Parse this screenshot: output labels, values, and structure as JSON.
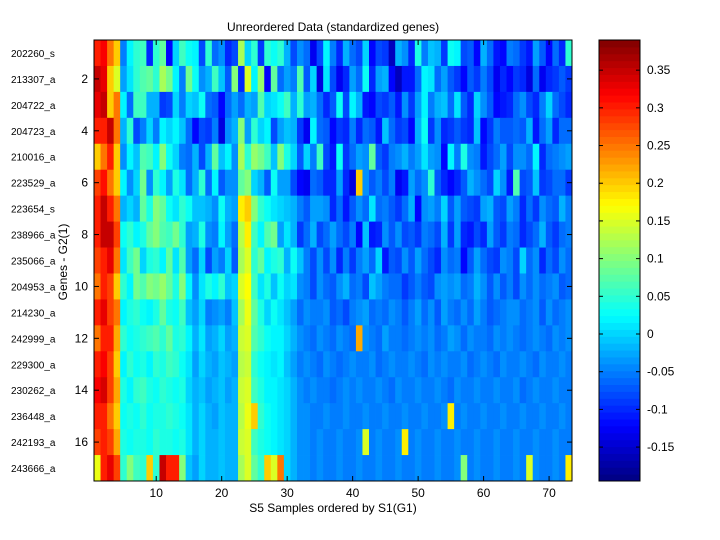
{
  "chart_data": {
    "type": "heatmap",
    "title": "Unreordered Data (standardized genes)",
    "xlabel": "S5 Samples ordered by S1(G1)",
    "ylabel": "Genes - G2(1)",
    "n_rows": 17,
    "n_cols": 73,
    "xlim": [
      0.5,
      73.5
    ],
    "ylim": [
      0.5,
      17.5
    ],
    "x_ticks": [
      10,
      20,
      30,
      40,
      50,
      60,
      70
    ],
    "y_ticks": [
      2,
      4,
      6,
      8,
      10,
      12,
      14,
      16
    ],
    "row_labels": [
      "202260_s",
      "213307_a",
      "204722_a",
      "204723_a",
      "210016_a",
      "223529_a",
      "223654_s",
      "238966_a",
      "235066_a",
      "204953_a",
      "214230_a",
      "242999_a",
      "229300_a",
      "230262_a",
      "236448_a",
      "242193_a",
      "243666_a"
    ],
    "colorbar": {
      "colormap": "jet",
      "clim": [
        -0.195,
        0.39
      ],
      "ticks": [
        -0.15,
        -0.1,
        -0.05,
        0,
        0.05,
        0.1,
        0.15,
        0.2,
        0.25,
        0.3,
        0.35
      ]
    },
    "values_note": "cell values estimated from color: first ~4 columns high (~0.25-0.35), column ~23 elevated (~0.15), remainder mostly -0.15 to 0.05",
    "values": [
      [
        0.3,
        0.32,
        0.25,
        0.2,
        -0.05,
        0.02,
        0.05,
        0.06,
        -0.1,
        0.05,
        0.08,
        -0.12,
        0.0,
        0.06,
        0.03,
        0.02,
        -0.08,
        0.05,
        -0.06,
        -0.04,
        -0.1,
        -0.08,
        0.12,
        0.0,
        0.05,
        -0.09,
        0.05,
        0.03,
        0.05,
        -0.02,
        -0.08,
        -0.04,
        -0.06,
        -0.13,
        -0.08,
        0.02,
        -0.05,
        -0.1,
        -0.02,
        -0.06,
        -0.08,
        0.0,
        -0.12,
        -0.08,
        -0.09,
        -0.16,
        -0.02,
        -0.04,
        -0.1,
        0.04,
        -0.05,
        -0.01,
        -0.02,
        -0.09,
        0.03,
        0.02,
        -0.08,
        -0.07,
        -0.12,
        -0.02,
        -0.06,
        -0.11,
        -0.12,
        -0.05,
        -0.06,
        -0.09,
        -0.11,
        -0.03,
        -0.07,
        -0.12,
        -0.06,
        -0.1,
        0.05
      ],
      [
        0.35,
        0.33,
        0.2,
        0.15,
        -0.03,
        0.01,
        0.05,
        0.07,
        0.08,
        0.05,
        0.12,
        0.09,
        0.02,
        -0.05,
        0.09,
        0.03,
        -0.04,
        -0.02,
        0.06,
        -0.01,
        -0.07,
        0.1,
        -0.1,
        0.15,
        0.02,
        0.11,
        -0.12,
        0.08,
        -0.06,
        -0.03,
        -0.05,
        0.07,
        -0.07,
        0.0,
        -0.14,
        0.01,
        -0.08,
        -0.13,
        -0.1,
        -0.03,
        -0.06,
        0.03,
        -0.1,
        -0.03,
        -0.02,
        -0.12,
        -0.16,
        -0.11,
        -0.11,
        -0.06,
        0.02,
        0.01,
        -0.06,
        -0.03,
        -0.07,
        -0.09,
        -0.12,
        -0.07,
        -0.09,
        -0.05,
        -0.08,
        -0.13,
        -0.1,
        -0.12,
        -0.09,
        -0.1,
        -0.14,
        -0.06,
        -0.13,
        -0.1,
        -0.09,
        -0.07,
        -0.09
      ],
      [
        0.33,
        0.35,
        0.2,
        0.25,
        0.02,
        -0.06,
        0.06,
        0.06,
        -0.02,
        -0.02,
        -0.09,
        -0.08,
        0.0,
        -0.05,
        0.0,
        -0.01,
        0.03,
        -0.06,
        -0.07,
        -0.12,
        -0.06,
        -0.03,
        -0.06,
        -0.02,
        -0.03,
        0.07,
        0.0,
        0.01,
        0.03,
        0.06,
        -0.02,
        0.05,
        -0.03,
        -0.02,
        -0.06,
        -0.1,
        -0.07,
        0.03,
        -0.08,
        0.02,
        -0.02,
        -0.11,
        -0.12,
        -0.08,
        -0.09,
        -0.07,
        -0.11,
        -0.04,
        -0.09,
        -0.03,
        0.02,
        -0.05,
        -0.02,
        -0.01,
        -0.06,
        0.01,
        -0.07,
        -0.1,
        0.0,
        -0.04,
        -0.07,
        -0.12,
        -0.11,
        -0.1,
        -0.06,
        -0.04,
        -0.08,
        -0.1,
        -0.05,
        0.0,
        -0.06,
        -0.08,
        -0.1
      ],
      [
        0.3,
        0.3,
        0.35,
        0.25,
        -0.02,
        0.05,
        -0.08,
        -0.05,
        0.0,
        -0.05,
        0.02,
        0.0,
        0.02,
        -0.01,
        -0.06,
        -0.12,
        -0.08,
        -0.09,
        -0.05,
        -0.14,
        -0.04,
        -0.02,
        0.1,
        -0.03,
        0.05,
        0.0,
        0.02,
        -0.08,
        -0.03,
        -0.01,
        -0.02,
        -0.09,
        -0.13,
        0.02,
        -0.06,
        -0.07,
        -0.12,
        -0.09,
        -0.1,
        -0.05,
        -0.1,
        -0.06,
        -0.07,
        -0.11,
        -0.01,
        -0.06,
        -0.09,
        -0.08,
        -0.12,
        -0.02,
        0.03,
        -0.09,
        -0.04,
        -0.1,
        -0.09,
        -0.07,
        -0.09,
        -0.1,
        -0.01,
        -0.12,
        -0.09,
        -0.05,
        -0.07,
        -0.07,
        -0.06,
        -0.07,
        -0.02,
        -0.11,
        -0.06,
        -0.03,
        -0.1,
        -0.06,
        -0.06
      ],
      [
        0.2,
        0.25,
        0.3,
        0.2,
        -0.04,
        0.02,
        -0.01,
        0.07,
        0.06,
        0.02,
        0.1,
        0.03,
        0.0,
        -0.05,
        -0.06,
        -0.02,
        -0.08,
        -0.02,
        0.08,
        -0.01,
        0.02,
        -0.04,
        0.12,
        0.05,
        0.11,
        0.09,
        0.06,
        -0.01,
        0.1,
        0.04,
        0.0,
        -0.07,
        0.0,
        -0.05,
        0.06,
        -0.08,
        -0.11,
        0.03,
        -0.09,
        -0.06,
        -0.03,
        -0.04,
        0.08,
        -0.07,
        -0.09,
        -0.05,
        -0.04,
        -0.02,
        -0.05,
        -0.03,
        0.01,
        -0.03,
        -0.04,
        -0.12,
        0.02,
        -0.05,
        0.04,
        -0.04,
        -0.05,
        -0.11,
        -0.08,
        -0.06,
        -0.03,
        -0.08,
        -0.04,
        -0.04,
        -0.06,
        0.02,
        -0.1,
        -0.06,
        -0.05,
        -0.04,
        -0.03
      ],
      [
        0.28,
        0.31,
        0.25,
        0.2,
        0.02,
        -0.04,
        0.0,
        0.09,
        -0.04,
        0.05,
        0.02,
        -0.03,
        0.04,
        0.01,
        -0.06,
        -0.02,
        0.05,
        -0.06,
        0.02,
        -0.07,
        -0.04,
        -0.04,
        0.08,
        0.1,
        0.0,
        -0.02,
        -0.07,
        0.03,
        -0.03,
        -0.03,
        -0.08,
        -0.12,
        -0.13,
        -0.06,
        -0.07,
        -0.1,
        -0.1,
        -0.03,
        -0.1,
        -0.14,
        0.2,
        -0.04,
        -0.07,
        -0.05,
        -0.08,
        -0.05,
        -0.13,
        -0.11,
        -0.03,
        -0.06,
        -0.04,
        0.05,
        -0.07,
        -0.1,
        -0.12,
        -0.1,
        -0.07,
        -0.02,
        -0.04,
        -0.06,
        -0.08,
        0.0,
        -0.04,
        -0.11,
        0.07,
        -0.08,
        -0.07,
        -0.01,
        -0.09,
        -0.08,
        -0.06,
        -0.06,
        -0.09
      ],
      [
        0.3,
        0.35,
        0.3,
        0.25,
        -0.02,
        0.0,
        -0.02,
        0.08,
        0.04,
        0.1,
        0.08,
        0.03,
        0.01,
        0.05,
        0.03,
        -0.01,
        -0.01,
        -0.02,
        -0.04,
        0.03,
        -0.02,
        -0.03,
        0.18,
        0.2,
        0.1,
        0.05,
        0.03,
        0.01,
        0.0,
        -0.01,
        -0.02,
        -0.05,
        -0.07,
        -0.03,
        -0.03,
        -0.04,
        -0.1,
        -0.06,
        -0.11,
        -0.07,
        -0.04,
        -0.06,
        0.01,
        -0.06,
        -0.05,
        -0.07,
        -0.09,
        -0.06,
        -0.02,
        -0.12,
        -0.04,
        -0.03,
        -0.05,
        0.0,
        -0.07,
        -0.03,
        -0.07,
        -0.08,
        -0.09,
        -0.03,
        -0.02,
        -0.07,
        -0.08,
        -0.03,
        -0.05,
        -0.1,
        -0.06,
        -0.09,
        -0.04,
        -0.06,
        -0.07,
        -0.02,
        -0.05
      ],
      [
        0.3,
        0.35,
        0.35,
        0.28,
        0.03,
        0.05,
        0.02,
        0.04,
        0.08,
        0.1,
        0.07,
        0.06,
        0.09,
        0.05,
        -0.03,
        -0.02,
        0.04,
        -0.04,
        -0.05,
        0.02,
        -0.03,
        -0.06,
        0.13,
        0.18,
        0.06,
        0.02,
        0.07,
        0.09,
        -0.03,
        0.01,
        -0.02,
        -0.09,
        -0.06,
        -0.02,
        -0.08,
        -0.06,
        -0.03,
        -0.06,
        -0.08,
        -0.05,
        -0.12,
        -0.01,
        -0.11,
        -0.1,
        -0.04,
        -0.07,
        -0.04,
        -0.08,
        -0.07,
        -0.09,
        -0.05,
        -0.06,
        -0.08,
        -0.02,
        -0.09,
        -0.03,
        -0.1,
        -0.11,
        -0.08,
        -0.1,
        -0.03,
        -0.07,
        -0.09,
        -0.05,
        -0.06,
        -0.1,
        -0.08,
        -0.06,
        -0.02,
        -0.07,
        -0.09,
        -0.06,
        -0.05
      ],
      [
        0.28,
        0.3,
        0.33,
        0.25,
        0.01,
        0.06,
        0.09,
        0.0,
        0.04,
        0.05,
        0.02,
        0.08,
        0.01,
        0.07,
        -0.03,
        -0.06,
        0.0,
        -0.08,
        -0.03,
        -0.05,
        0.0,
        -0.07,
        0.12,
        0.15,
        0.05,
        0.08,
        0.02,
        0.04,
        0.05,
        -0.02,
        0.03,
        -0.01,
        -0.05,
        -0.08,
        -0.04,
        -0.08,
        -0.04,
        -0.1,
        -0.05,
        -0.09,
        -0.05,
        -0.03,
        -0.06,
        0.0,
        -0.11,
        -0.07,
        -0.08,
        -0.04,
        -0.07,
        -0.03,
        -0.06,
        -0.08,
        -0.1,
        -0.04,
        -0.06,
        -0.05,
        -0.12,
        -0.07,
        -0.03,
        -0.06,
        -0.08,
        -0.09,
        -0.04,
        -0.05,
        -0.08,
        0.0,
        -0.06,
        -0.04,
        -0.1,
        -0.06,
        -0.08,
        -0.04,
        -0.06
      ],
      [
        0.25,
        0.3,
        0.28,
        0.2,
        0.05,
        0.02,
        0.09,
        0.07,
        0.1,
        0.09,
        0.11,
        0.08,
        0.04,
        0.1,
        0.02,
        -0.04,
        0.01,
        0.04,
        0.02,
        0.05,
        -0.01,
        0.0,
        0.15,
        0.17,
        0.06,
        0.01,
        0.04,
        -0.01,
        0.03,
        0.0,
        0.01,
        -0.04,
        -0.05,
        -0.08,
        -0.04,
        -0.06,
        -0.07,
        -0.04,
        -0.02,
        -0.06,
        -0.05,
        -0.08,
        -0.01,
        -0.03,
        -0.05,
        -0.06,
        -0.06,
        -0.09,
        -0.07,
        -0.05,
        -0.07,
        -0.08,
        -0.04,
        -0.03,
        -0.04,
        -0.03,
        -0.06,
        -0.05,
        -0.02,
        -0.04,
        -0.07,
        -0.04,
        -0.07,
        -0.05,
        -0.08,
        -0.04,
        -0.06,
        -0.04,
        -0.06,
        -0.05,
        -0.04,
        -0.07,
        -0.06
      ],
      [
        0.3,
        0.33,
        0.28,
        0.25,
        0.02,
        0.04,
        0.05,
        0.03,
        0.02,
        0.04,
        0.08,
        0.04,
        0.03,
        0.06,
        -0.01,
        -0.03,
        0.0,
        -0.05,
        -0.04,
        -0.03,
        -0.05,
        -0.01,
        0.12,
        0.16,
        0.08,
        0.04,
        0.0,
        0.03,
        0.01,
        -0.01,
        -0.03,
        -0.06,
        -0.04,
        -0.05,
        -0.05,
        -0.04,
        -0.07,
        -0.06,
        -0.08,
        -0.05,
        -0.04,
        -0.03,
        -0.06,
        -0.05,
        -0.06,
        -0.04,
        -0.05,
        -0.07,
        -0.05,
        -0.03,
        -0.06,
        -0.04,
        -0.07,
        -0.03,
        -0.05,
        -0.06,
        -0.04,
        -0.06,
        -0.03,
        -0.05,
        -0.07,
        -0.06,
        -0.05,
        -0.04,
        -0.04,
        -0.06,
        -0.05,
        -0.04,
        -0.07,
        -0.04,
        -0.06,
        -0.05,
        -0.04
      ],
      [
        0.25,
        0.3,
        0.3,
        0.22,
        0.05,
        0.03,
        0.04,
        0.05,
        0.06,
        0.07,
        0.05,
        0.08,
        0.04,
        0.05,
        0.02,
        -0.02,
        0.01,
        -0.03,
        -0.02,
        0.0,
        -0.03,
        -0.02,
        0.14,
        0.15,
        0.07,
        0.05,
        0.03,
        0.02,
        0.02,
        0.0,
        -0.02,
        -0.04,
        -0.05,
        -0.06,
        -0.04,
        -0.05,
        -0.06,
        -0.04,
        -0.05,
        -0.06,
        0.22,
        -0.04,
        -0.05,
        -0.06,
        -0.03,
        -0.05,
        -0.05,
        -0.06,
        -0.05,
        -0.04,
        -0.05,
        -0.04,
        -0.06,
        -0.05,
        -0.03,
        -0.04,
        -0.06,
        -0.04,
        -0.05,
        -0.05,
        -0.06,
        -0.04,
        -0.05,
        -0.04,
        -0.05,
        -0.06,
        -0.05,
        -0.04,
        -0.05,
        -0.06,
        -0.04,
        -0.05,
        -0.04
      ],
      [
        0.3,
        0.32,
        0.28,
        0.2,
        0.02,
        0.05,
        0.03,
        0.04,
        0.02,
        0.05,
        0.04,
        0.06,
        0.05,
        0.03,
        0.01,
        -0.03,
        0.0,
        -0.02,
        -0.03,
        -0.01,
        -0.02,
        -0.03,
        0.13,
        0.14,
        0.05,
        0.03,
        0.02,
        0.01,
        0.02,
        -0.01,
        -0.03,
        -0.05,
        -0.04,
        -0.05,
        -0.06,
        -0.04,
        -0.05,
        -0.06,
        -0.05,
        -0.04,
        -0.05,
        -0.05,
        -0.04,
        -0.06,
        -0.05,
        -0.04,
        -0.05,
        -0.05,
        -0.04,
        -0.05,
        -0.06,
        -0.04,
        -0.05,
        -0.04,
        -0.05,
        -0.05,
        -0.04,
        -0.06,
        -0.05,
        -0.04,
        -0.05,
        -0.06,
        -0.04,
        -0.05,
        -0.05,
        -0.04,
        -0.05,
        -0.06,
        -0.04,
        -0.05,
        -0.05,
        -0.04,
        -0.05
      ],
      [
        0.32,
        0.34,
        0.28,
        0.22,
        0.04,
        0.02,
        0.05,
        0.06,
        0.04,
        0.03,
        0.05,
        0.04,
        0.03,
        0.04,
        0.0,
        -0.02,
        -0.01,
        -0.03,
        -0.02,
        -0.01,
        -0.03,
        -0.02,
        0.14,
        0.15,
        0.06,
        0.04,
        0.02,
        0.02,
        0.01,
        0.0,
        -0.02,
        -0.04,
        -0.05,
        -0.04,
        -0.05,
        -0.05,
        -0.06,
        -0.05,
        -0.04,
        -0.05,
        -0.04,
        -0.05,
        -0.05,
        -0.04,
        -0.05,
        -0.06,
        -0.04,
        -0.05,
        -0.05,
        -0.04,
        -0.05,
        -0.05,
        -0.04,
        -0.05,
        -0.06,
        -0.04,
        -0.05,
        -0.05,
        -0.04,
        -0.05,
        -0.05,
        -0.04,
        -0.05,
        -0.05,
        -0.04,
        -0.06,
        -0.05,
        -0.04,
        -0.05,
        -0.05,
        -0.04,
        -0.05,
        -0.05
      ],
      [
        0.3,
        0.3,
        0.25,
        0.2,
        0.03,
        0.04,
        0.03,
        0.05,
        0.03,
        0.04,
        0.04,
        0.05,
        0.04,
        0.03,
        0.01,
        -0.02,
        0.0,
        -0.02,
        -0.03,
        -0.01,
        -0.02,
        -0.02,
        0.13,
        0.16,
        0.2,
        0.05,
        0.03,
        0.02,
        0.01,
        0.0,
        -0.02,
        -0.04,
        -0.04,
        -0.05,
        -0.05,
        -0.04,
        -0.05,
        -0.05,
        -0.04,
        -0.05,
        -0.05,
        -0.04,
        -0.05,
        -0.05,
        -0.04,
        -0.05,
        -0.05,
        -0.04,
        -0.05,
        -0.05,
        -0.04,
        -0.05,
        -0.05,
        -0.04,
        0.18,
        -0.05,
        -0.04,
        -0.05,
        -0.05,
        -0.04,
        -0.05,
        -0.05,
        -0.04,
        -0.05,
        -0.05,
        -0.04,
        -0.05,
        -0.05,
        -0.04,
        -0.05,
        -0.05,
        -0.04,
        -0.05
      ],
      [
        0.28,
        0.3,
        0.28,
        0.22,
        0.04,
        0.03,
        0.04,
        0.04,
        0.03,
        0.05,
        0.04,
        0.04,
        0.03,
        0.04,
        0.01,
        -0.02,
        0.0,
        -0.02,
        -0.02,
        -0.01,
        -0.02,
        -0.02,
        0.14,
        0.15,
        0.06,
        0.04,
        0.03,
        0.02,
        0.01,
        0.0,
        -0.02,
        -0.04,
        -0.04,
        -0.05,
        -0.04,
        -0.05,
        -0.05,
        -0.04,
        -0.05,
        -0.05,
        -0.04,
        0.15,
        -0.05,
        -0.04,
        -0.05,
        -0.05,
        -0.04,
        0.18,
        -0.05,
        -0.04,
        -0.05,
        -0.05,
        -0.04,
        -0.05,
        -0.05,
        -0.04,
        -0.05,
        -0.05,
        -0.04,
        -0.05,
        -0.05,
        -0.04,
        -0.05,
        -0.05,
        -0.04,
        -0.05,
        -0.05,
        -0.04,
        -0.05,
        -0.05,
        -0.04,
        -0.05,
        -0.05
      ],
      [
        0.16,
        0.3,
        0.33,
        0.28,
        0.05,
        0.1,
        0.06,
        0.05,
        0.2,
        0.05,
        0.35,
        0.3,
        0.3,
        0.1,
        -0.01,
        -0.03,
        0.0,
        -0.02,
        -0.02,
        -0.01,
        -0.02,
        -0.02,
        0.12,
        0.15,
        0.08,
        0.05,
        0.2,
        0.15,
        0.25,
        0.0,
        -0.02,
        -0.04,
        -0.04,
        -0.05,
        -0.04,
        -0.05,
        -0.05,
        -0.04,
        -0.05,
        -0.05,
        -0.04,
        -0.05,
        -0.05,
        -0.04,
        -0.05,
        -0.05,
        -0.04,
        -0.05,
        -0.05,
        -0.04,
        -0.05,
        -0.05,
        -0.04,
        -0.05,
        -0.05,
        -0.04,
        0.1,
        -0.05,
        -0.04,
        -0.05,
        -0.05,
        -0.04,
        -0.05,
        -0.05,
        -0.04,
        -0.05,
        0.15,
        -0.04,
        -0.05,
        -0.05,
        -0.04,
        -0.05,
        0.18
      ]
    ]
  }
}
